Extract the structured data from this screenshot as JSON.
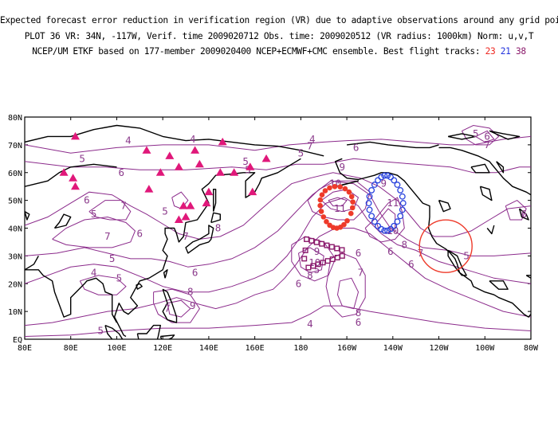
{
  "header": {
    "line1": "Expected forecast error reduction in verification region (VR) due to adaptive observations around any grid point.",
    "line2": "PLOT 36 VR: 34N, -117W, Verif. time 2009020712 Obs. time: 2009020512 (VR radius: 1000km) Norm: u,v,T",
    "line3_prefix": "NCEP/UM ETKF based on 177-member 2009020400 NCEP+ECMWF+CMC ensemble. Best flight tracks:",
    "track_a": "23",
    "track_b": "21",
    "track_c": "38"
  },
  "map": {
    "lat_labels": [
      "80N",
      "70N",
      "60N",
      "50N",
      "40N",
      "30N",
      "20N",
      "10N",
      "EQ"
    ],
    "lon_labels": [
      "80E",
      "80E",
      "100E",
      "120E",
      "140E",
      "160E",
      "180",
      "160W",
      "140W",
      "120W",
      "100W",
      "80W"
    ],
    "colors": {
      "contour": "#8b2a8b",
      "coast": "#000000",
      "track_red": "#ee3a2a",
      "track_blue": "#2a44dd",
      "track_purple": "#8b1a6b",
      "raob_triangle": "#e0187a",
      "verification_circle": "#ee3a2a"
    },
    "contour_labels": [
      {
        "lon": 105,
        "lat": 71.5,
        "text": "4"
      },
      {
        "lon": 133,
        "lat": 72,
        "text": "4"
      },
      {
        "lon": 85,
        "lat": 65,
        "text": "5"
      },
      {
        "lon": 156,
        "lat": 64,
        "text": "5"
      },
      {
        "lon": 102,
        "lat": 60,
        "text": "6"
      },
      {
        "lon": 87,
        "lat": 50,
        "text": "6"
      },
      {
        "lon": 90,
        "lat": 45,
        "text": "5"
      },
      {
        "lon": 103,
        "lat": 48,
        "text": "7"
      },
      {
        "lon": 121,
        "lat": 46,
        "text": "5"
      },
      {
        "lon": 96,
        "lat": 37,
        "text": "7"
      },
      {
        "lon": 98,
        "lat": 29,
        "text": "5"
      },
      {
        "lon": 110,
        "lat": 38,
        "text": "6"
      },
      {
        "lon": 130,
        "lat": 37,
        "text": "7"
      },
      {
        "lon": 144,
        "lat": 40,
        "text": "8"
      },
      {
        "lon": 157,
        "lat": 61,
        "text": "5"
      },
      {
        "lon": 180,
        "lat": 67,
        "text": "5"
      },
      {
        "lon": 185,
        "lat": 72,
        "text": "4"
      },
      {
        "lon": 204,
        "lat": 69,
        "text": "6"
      },
      {
        "lon": 184,
        "lat": 69.5,
        "text": "7"
      },
      {
        "lon": 198,
        "lat": 62,
        "text": "9"
      },
      {
        "lon": 195,
        "lat": 56,
        "text": "10"
      },
      {
        "lon": 197,
        "lat": 47,
        "text": "11"
      },
      {
        "lon": 216,
        "lat": 56,
        "text": "9"
      },
      {
        "lon": 220,
        "lat": 49,
        "text": "11"
      },
      {
        "lon": 220,
        "lat": 39,
        "text": "10"
      },
      {
        "lon": 225,
        "lat": 34,
        "text": "8"
      },
      {
        "lon": 232,
        "lat": 31,
        "text": "7"
      },
      {
        "lon": 228,
        "lat": 27,
        "text": "6"
      },
      {
        "lon": 219,
        "lat": 31.5,
        "text": "6"
      },
      {
        "lon": 205,
        "lat": 31,
        "text": "6"
      },
      {
        "lon": 206,
        "lat": 24,
        "text": "7"
      },
      {
        "lon": 186,
        "lat": 27.5,
        "text": "10"
      },
      {
        "lon": 184,
        "lat": 23,
        "text": "8"
      },
      {
        "lon": 179,
        "lat": 20,
        "text": "6"
      },
      {
        "lon": 187,
        "lat": 31.5,
        "text": "9"
      },
      {
        "lon": 187,
        "lat": 25,
        "text": "5"
      },
      {
        "lon": 205,
        "lat": 9.5,
        "text": "8"
      },
      {
        "lon": 205,
        "lat": 6,
        "text": "6"
      },
      {
        "lon": 184,
        "lat": 5.5,
        "text": "4"
      },
      {
        "lon": 134,
        "lat": 24,
        "text": "6"
      },
      {
        "lon": 132,
        "lat": 17,
        "text": "8"
      },
      {
        "lon": 133,
        "lat": 12,
        "text": "9"
      },
      {
        "lon": 122,
        "lat": 11,
        "text": "7"
      },
      {
        "lon": 101,
        "lat": 22,
        "text": "5"
      },
      {
        "lon": 90,
        "lat": 24,
        "text": "4"
      },
      {
        "lon": 93,
        "lat": 3,
        "text": "5"
      },
      {
        "lon": 252,
        "lat": 30,
        "text": "5"
      },
      {
        "lon": 256,
        "lat": 74,
        "text": "5"
      },
      {
        "lon": 261,
        "lat": 73,
        "text": "6"
      },
      {
        "lon": 261,
        "lat": 70,
        "text": "7"
      },
      {
        "lon": 277,
        "lat": 45,
        "text": "6"
      }
    ]
  }
}
